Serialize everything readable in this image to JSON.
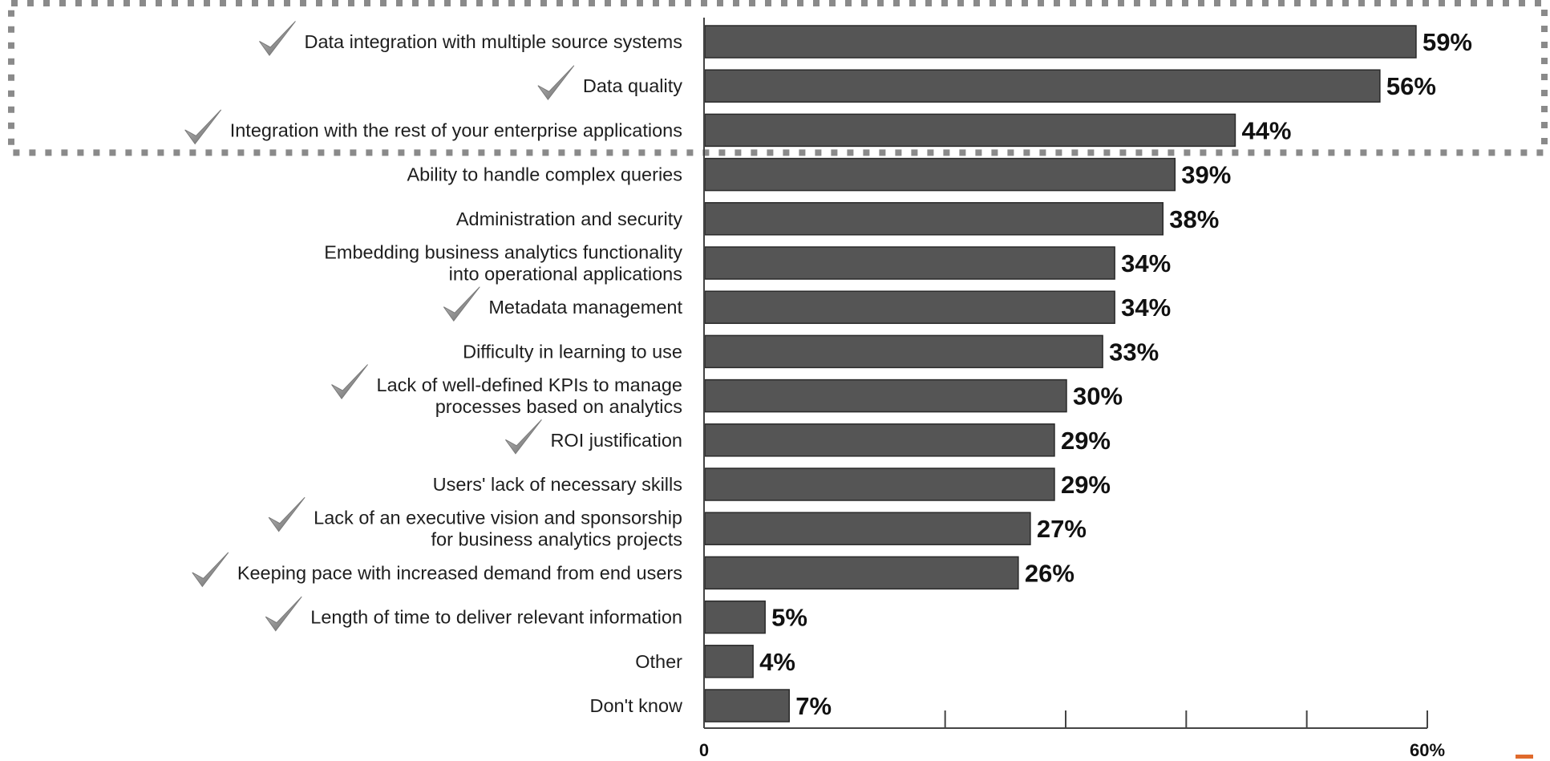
{
  "chart_data": {
    "type": "bar",
    "orientation": "horizontal",
    "categories": [
      [
        "Data integration with multiple source systems"
      ],
      [
        "Data quality"
      ],
      [
        "Integration with the rest of your enterprise applications"
      ],
      [
        "Ability to handle complex queries"
      ],
      [
        "Administration and security"
      ],
      [
        "Embedding business analytics functionality",
        "into operational applications"
      ],
      [
        "Metadata management"
      ],
      [
        "Difficulty in learning to use"
      ],
      [
        "Lack of well-defined KPIs to manage",
        "processes based on analytics"
      ],
      [
        "ROI justification"
      ],
      [
        "Users' lack of necessary skills"
      ],
      [
        "Lack of an executive vision and sponsorship",
        "for business analytics projects"
      ],
      [
        "Keeping pace with increased demand from end users"
      ],
      [
        "Length of time to deliver relevant information"
      ],
      [
        "Other"
      ],
      [
        "Don't know"
      ]
    ],
    "values": [
      59,
      56,
      44,
      39,
      38,
      34,
      34,
      33,
      30,
      29,
      29,
      27,
      26,
      5,
      4,
      7
    ],
    "value_labels": [
      "59%",
      "56%",
      "44%",
      "39%",
      "38%",
      "34%",
      "34%",
      "33%",
      "30%",
      "29%",
      "29%",
      "27%",
      "26%",
      "5%",
      "4%",
      "7%"
    ],
    "checkmarked": [
      true,
      true,
      true,
      false,
      false,
      false,
      true,
      false,
      true,
      true,
      false,
      true,
      true,
      true,
      false,
      false
    ],
    "highlighted_group": [
      0,
      1,
      2
    ],
    "xlim": [
      0,
      60
    ],
    "x_tick_labels": [
      {
        "value": 0,
        "label": "0"
      },
      {
        "value": 60,
        "label": "60%"
      }
    ],
    "x_minor_ticks": [
      20,
      30,
      40,
      50,
      60
    ],
    "xlabel": "",
    "ylabel": "",
    "title": "",
    "grid": false,
    "colors": {
      "bar": "#555555",
      "bar_edge": "#2a2a2a",
      "highlight_border": "#8a8a8a",
      "checkmark": "#9a9a9a",
      "accent": "#e06a2c"
    }
  }
}
